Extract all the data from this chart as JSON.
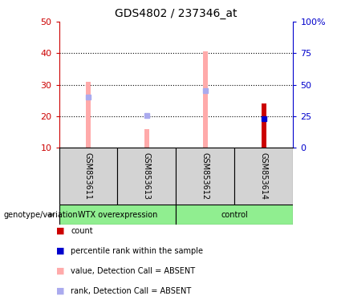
{
  "title": "GDS4802 / 237346_at",
  "samples": [
    "GSM853611",
    "GSM853613",
    "GSM853612",
    "GSM853614"
  ],
  "ylim_left": [
    10,
    50
  ],
  "ylim_right": [
    0,
    100
  ],
  "yticks_left": [
    10,
    20,
    30,
    40,
    50
  ],
  "yticks_right": [
    0,
    25,
    50,
    75,
    100
  ],
  "value_absent": [
    31.0,
    16.0,
    40.5,
    null
  ],
  "rank_absent": [
    26.0,
    20.3,
    28.0,
    null
  ],
  "count": [
    null,
    null,
    null,
    24.0
  ],
  "percentile_rank": [
    null,
    null,
    null,
    23.2
  ],
  "count_color": "#cc0000",
  "percentile_color": "#0000cc",
  "value_absent_color": "#ffaaaa",
  "rank_absent_color": "#aaaaee",
  "left_axis_color": "#cc0000",
  "right_axis_color": "#0000cc",
  "group_bg_color": "#d3d3d3",
  "bottom_group_color": "#90ee90",
  "wtx_group": "WTX overexpression",
  "ctrl_group": "control",
  "genotype_label": "genotype/variation",
  "legend_items": [
    {
      "color": "#cc0000",
      "label": "count"
    },
    {
      "color": "#0000cc",
      "label": "percentile rank within the sample"
    },
    {
      "color": "#ffaaaa",
      "label": "value, Detection Call = ABSENT"
    },
    {
      "color": "#aaaaee",
      "label": "rank, Detection Call = ABSENT"
    }
  ]
}
